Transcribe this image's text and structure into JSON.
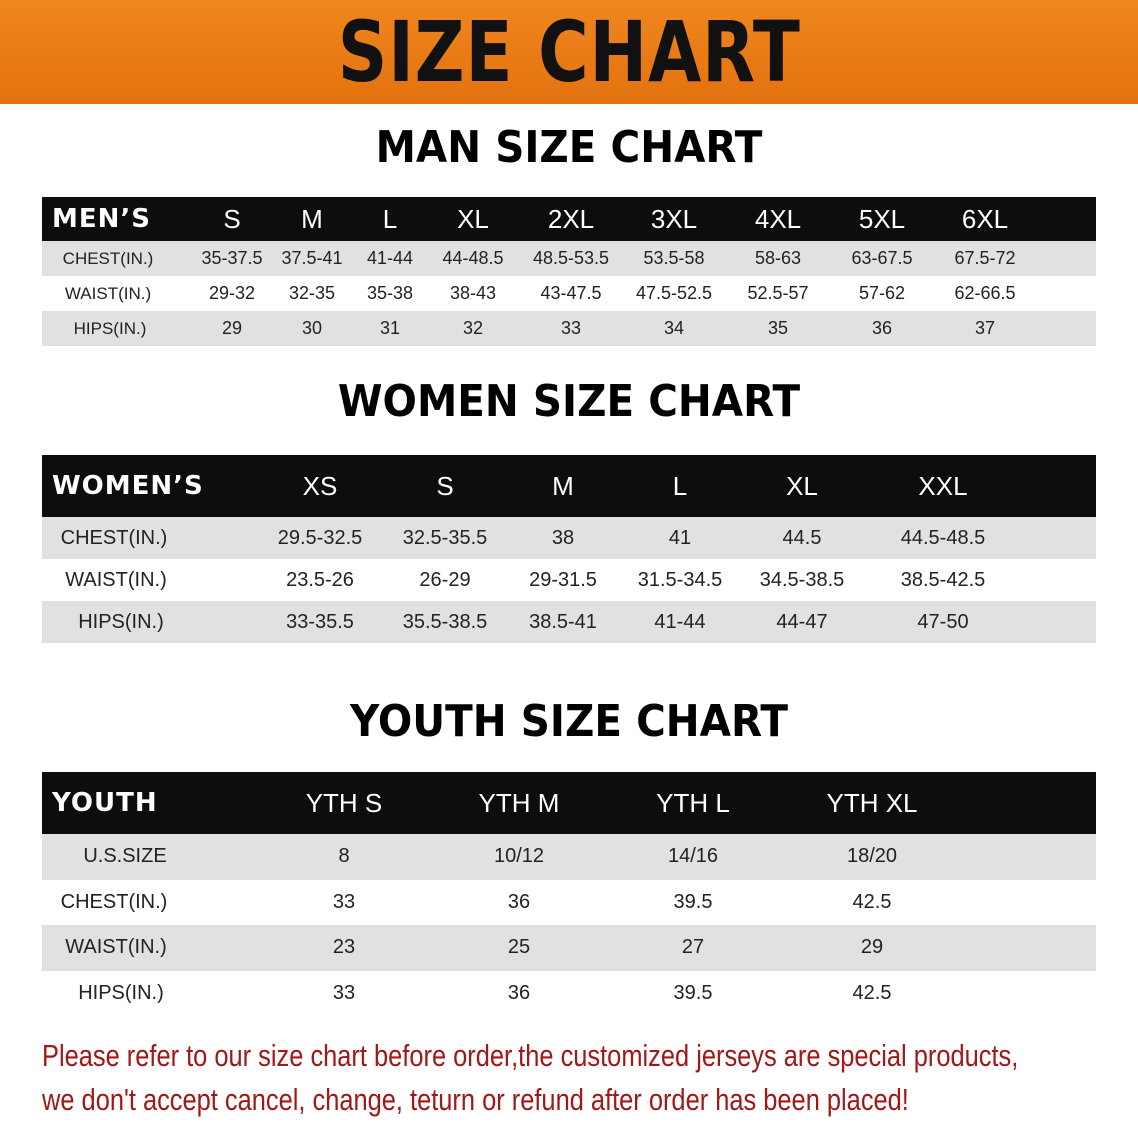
{
  "banner": {
    "title": "SIZE CHART",
    "color": "#e8781a"
  },
  "men": {
    "title": "MAN SIZE CHART",
    "header": [
      "MEN’S",
      "S",
      "M",
      "L",
      "XL",
      "2XL",
      "3XL",
      "4XL",
      "5XL",
      "6XL"
    ],
    "rows": [
      [
        "CHEST(IN.)",
        "35-37.5",
        "37.5-41",
        "41-44",
        "44-48.5",
        "48.5-53.5",
        "53.5-58",
        "58-63",
        "63-67.5",
        "67.5-72"
      ],
      [
        "WAIST(IN.)",
        "29-32",
        "32-35",
        "35-38",
        "38-43",
        "43-47.5",
        "47.5-52.5",
        "52.5-57",
        "57-62",
        "62-66.5"
      ],
      [
        "HIPS(IN.)",
        "29",
        "30",
        "31",
        "32",
        "33",
        "34",
        "35",
        "36",
        "37"
      ]
    ]
  },
  "women": {
    "title": "WOMEN SIZE CHART",
    "header": [
      "WOMEN’S",
      "XS",
      "S",
      "M",
      "L",
      "XL",
      "XXL"
    ],
    "rows": [
      [
        "CHEST(IN.)",
        "29.5-32.5",
        "32.5-35.5",
        "38",
        "41",
        "44.5",
        "44.5-48.5"
      ],
      [
        "WAIST(IN.)",
        "23.5-26",
        "26-29",
        "29-31.5",
        "31.5-34.5",
        "34.5-38.5",
        "38.5-42.5"
      ],
      [
        "HIPS(IN.)",
        "33-35.5",
        "35.5-38.5",
        "38.5-41",
        "41-44",
        "44-47",
        "47-50"
      ]
    ]
  },
  "youth": {
    "title": "YOUTH SIZE CHART",
    "header": [
      "YOUTH",
      "YTH S",
      "YTH M",
      "YTH L",
      "YTH XL"
    ],
    "rows": [
      [
        "U.S.SIZE",
        "8",
        "10/12",
        "14/16",
        "18/20"
      ],
      [
        "CHEST(IN.)",
        "33",
        "36",
        "39.5",
        "42.5"
      ],
      [
        "WAIST(IN.)",
        "23",
        "25",
        "27",
        "29"
      ],
      [
        "HIPS(IN.)",
        "33",
        "36",
        "39.5",
        "42.5"
      ]
    ]
  },
  "notice": {
    "line1": "Please refer to our size chart before order,the customized jerseys are special products,",
    "line2": "we don't accept cancel, change, teturn or refund after order has been placed!",
    "color": "#a01818"
  }
}
